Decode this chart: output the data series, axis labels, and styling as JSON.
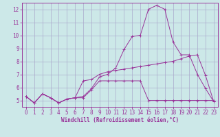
{
  "xlabel": "Windchill (Refroidissement éolien,°C)",
  "background_color": "#cce8e8",
  "grid_color": "#aaaacc",
  "line_color": "#993399",
  "xlim": [
    -0.5,
    23.5
  ],
  "ylim": [
    4.5,
    12.5
  ],
  "yticks": [
    5,
    6,
    7,
    8,
    9,
    10,
    11,
    12
  ],
  "xticks": [
    0,
    1,
    2,
    3,
    4,
    5,
    6,
    7,
    8,
    9,
    10,
    11,
    12,
    13,
    14,
    15,
    16,
    17,
    18,
    19,
    20,
    21,
    22,
    23
  ],
  "series1_x": [
    0,
    1,
    2,
    3,
    4,
    5,
    6,
    7,
    8,
    9,
    10,
    11,
    12,
    13,
    14,
    15,
    16,
    17,
    18,
    19,
    20,
    21,
    22,
    23
  ],
  "series1_y": [
    5.3,
    4.8,
    5.5,
    5.2,
    4.8,
    5.1,
    5.2,
    5.2,
    5.8,
    6.5,
    6.5,
    6.5,
    6.5,
    6.5,
    6.5,
    5.0,
    5.0,
    5.0,
    5.0,
    5.0,
    5.0,
    5.0,
    5.0,
    5.0
  ],
  "series2_x": [
    0,
    1,
    2,
    3,
    4,
    5,
    6,
    7,
    8,
    9,
    10,
    11,
    12,
    13,
    14,
    15,
    16,
    17,
    18,
    19,
    20,
    21,
    22,
    23
  ],
  "series2_y": [
    5.3,
    4.8,
    5.5,
    5.2,
    4.8,
    5.1,
    5.2,
    5.3,
    5.9,
    6.8,
    7.0,
    7.5,
    8.9,
    9.9,
    10.0,
    12.0,
    12.3,
    12.0,
    9.5,
    8.5,
    8.5,
    7.0,
    5.9,
    4.9
  ],
  "series3_x": [
    0,
    1,
    2,
    3,
    4,
    5,
    6,
    7,
    8,
    9,
    10,
    11,
    12,
    13,
    14,
    15,
    16,
    17,
    18,
    19,
    20,
    21,
    22,
    23
  ],
  "series3_y": [
    5.3,
    4.8,
    5.5,
    5.2,
    4.8,
    5.1,
    5.2,
    6.5,
    6.6,
    7.0,
    7.2,
    7.3,
    7.4,
    7.5,
    7.6,
    7.7,
    7.8,
    7.9,
    8.0,
    8.2,
    8.4,
    8.5,
    6.9,
    4.9
  ],
  "tick_fontsize": 5.5,
  "xlabel_fontsize": 5.5
}
